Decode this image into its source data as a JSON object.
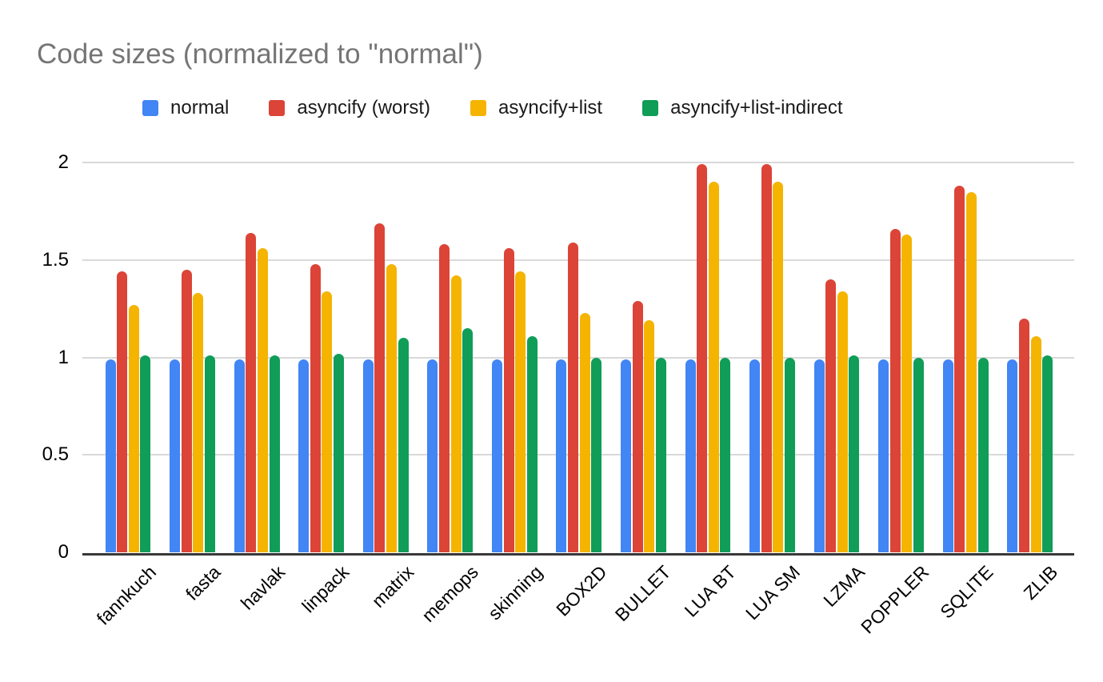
{
  "chart_data": {
    "type": "bar",
    "title": "Code sizes (normalized to \"normal\")",
    "categories": [
      "fannkuch",
      "fasta",
      "havlak",
      "linpack",
      "matrix",
      "memops",
      "skinning",
      "BOX2D",
      "BULLET",
      "LUA BT",
      "LUA SM",
      "LZMA",
      "POPPLER",
      "SQLITE",
      "ZLIB"
    ],
    "series": [
      {
        "name": "normal",
        "color": "#4285F4",
        "values": [
          0.99,
          0.99,
          0.99,
          0.99,
          0.99,
          0.99,
          0.99,
          0.99,
          0.99,
          0.99,
          0.99,
          0.99,
          0.99,
          0.99,
          0.99
        ]
      },
      {
        "name": "asyncify (worst)",
        "color": "#DB4437",
        "values": [
          1.44,
          1.45,
          1.64,
          1.48,
          1.69,
          1.58,
          1.56,
          1.59,
          1.29,
          1.99,
          1.99,
          1.4,
          1.66,
          1.88,
          1.2
        ]
      },
      {
        "name": "asyncify+list",
        "color": "#F4B400",
        "values": [
          1.27,
          1.33,
          1.56,
          1.34,
          1.48,
          1.42,
          1.44,
          1.23,
          1.19,
          1.9,
          1.9,
          1.34,
          1.63,
          1.85,
          1.11
        ]
      },
      {
        "name": "asyncify+list-indirect",
        "color": "#0F9D58",
        "values": [
          1.01,
          1.01,
          1.01,
          1.02,
          1.1,
          1.15,
          1.11,
          1.0,
          1.0,
          1.0,
          1.0,
          1.01,
          1.0,
          1.0,
          1.01
        ]
      }
    ],
    "y_ticks": [
      0,
      0.5,
      1,
      1.5,
      2
    ],
    "y_tick_labels": [
      "0",
      "0.5",
      "1",
      "1.5",
      "2"
    ],
    "ylim": [
      0,
      2
    ],
    "xlabel": "",
    "ylabel": "",
    "grid": true,
    "legend_position": "top",
    "title_color": "#757575",
    "gridline_color": "#d9d9d9",
    "axis_line_color": "#383838",
    "tick_text_color": "#000000"
  }
}
